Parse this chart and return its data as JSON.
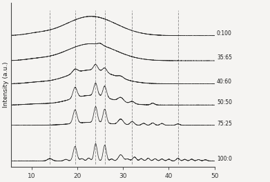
{
  "title": "",
  "xlabel": "",
  "ylabel": "Intensity (a.u.)",
  "xlim": [
    5.5,
    50
  ],
  "xticks": [
    10,
    20,
    30,
    40,
    50
  ],
  "dashed_lines": [
    14,
    19.5,
    24,
    26,
    32,
    42
  ],
  "labels": [
    "0:100",
    "35:65",
    "40:60",
    "50:50",
    "75:25",
    "100:0"
  ],
  "offsets": [
    6.5,
    5.2,
    4.0,
    2.9,
    1.85,
    0.0
  ],
  "bg_color": "#f5f4f2",
  "line_color": "#1a1a1a",
  "dash_color": "#888888"
}
